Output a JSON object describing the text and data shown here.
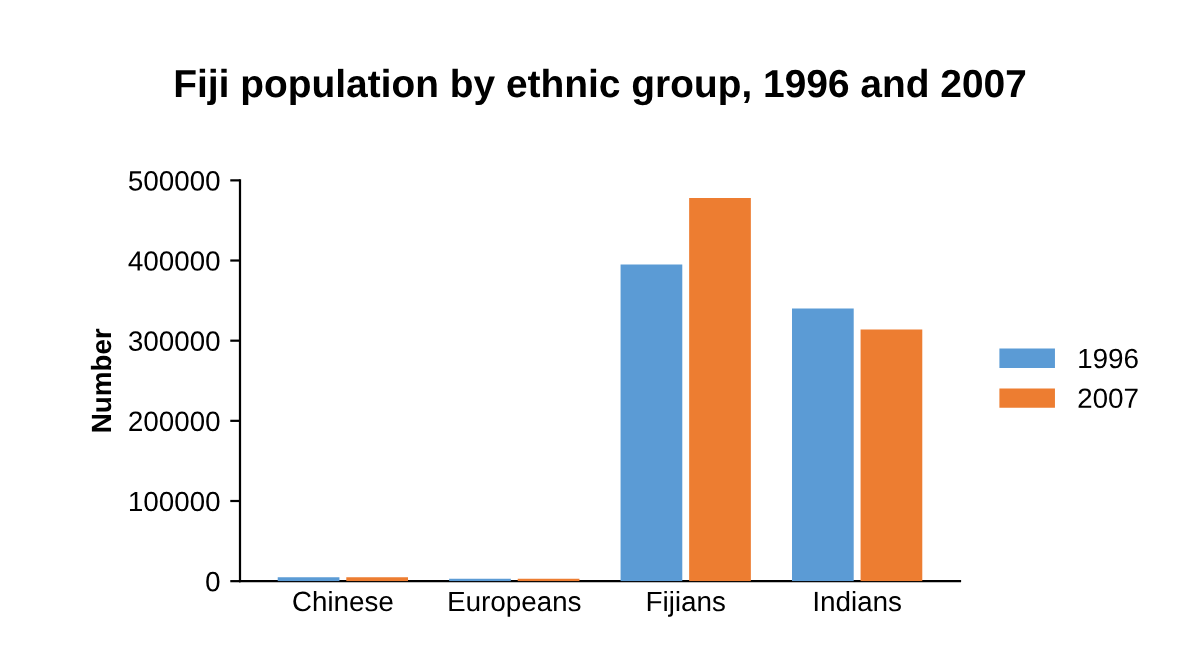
{
  "chart_data": {
    "type": "bar",
    "title": "Fiji population by ethnic group, 1996 and 2007",
    "ylabel": "Number",
    "categories": [
      "Chinese",
      "Europeans",
      "Fijians",
      "Indians"
    ],
    "series": [
      {
        "name": "1996",
        "color": "#5b9bd5",
        "values": [
          5000,
          3000,
          395000,
          340000
        ]
      },
      {
        "name": "2007",
        "color": "#ed7d31",
        "values": [
          5000,
          3000,
          478000,
          314000
        ]
      }
    ],
    "ylim": [
      0,
      500000
    ],
    "yticks": [
      0,
      100000,
      200000,
      300000,
      400000,
      500000
    ],
    "grid": false,
    "legend": "right"
  }
}
